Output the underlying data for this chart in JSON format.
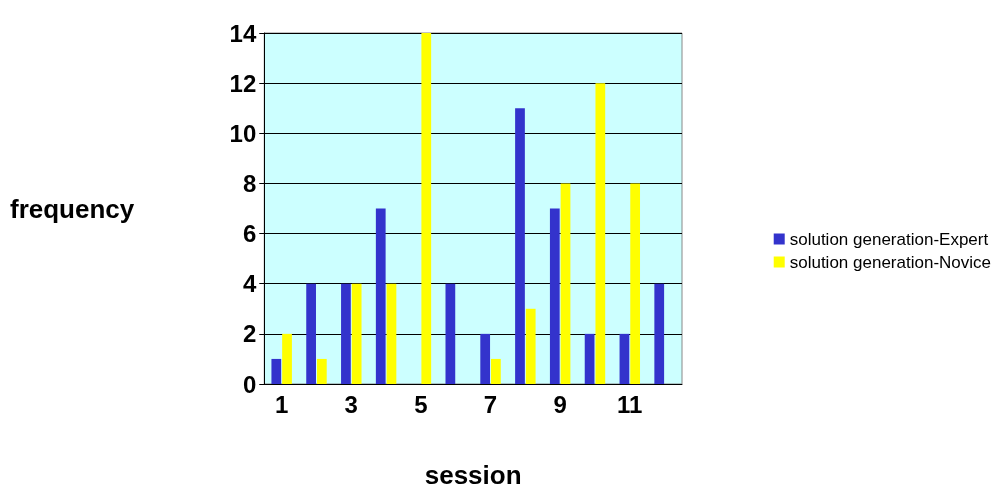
{
  "chart_data": {
    "type": "bar",
    "xlabel": "session",
    "ylabel": "frequency",
    "categories": [
      "1",
      null,
      "3",
      null,
      "5",
      null,
      "7",
      null,
      "9",
      null,
      "11",
      null
    ],
    "series": [
      {
        "name": "solution generation-Expert",
        "color": "#3333cc",
        "values": [
          1,
          4,
          4,
          7,
          0,
          4,
          2,
          11,
          7,
          2,
          2,
          4
        ]
      },
      {
        "name": "solution generation-Novice",
        "color": "#ffff00",
        "values": [
          2,
          1,
          4,
          4,
          14,
          0,
          1,
          3,
          8,
          12,
          8,
          0
        ]
      }
    ],
    "ylim": [
      0,
      14
    ],
    "yticks": [
      0,
      2,
      4,
      6,
      8,
      10,
      12,
      14
    ],
    "grid": "y",
    "legend": "right"
  }
}
